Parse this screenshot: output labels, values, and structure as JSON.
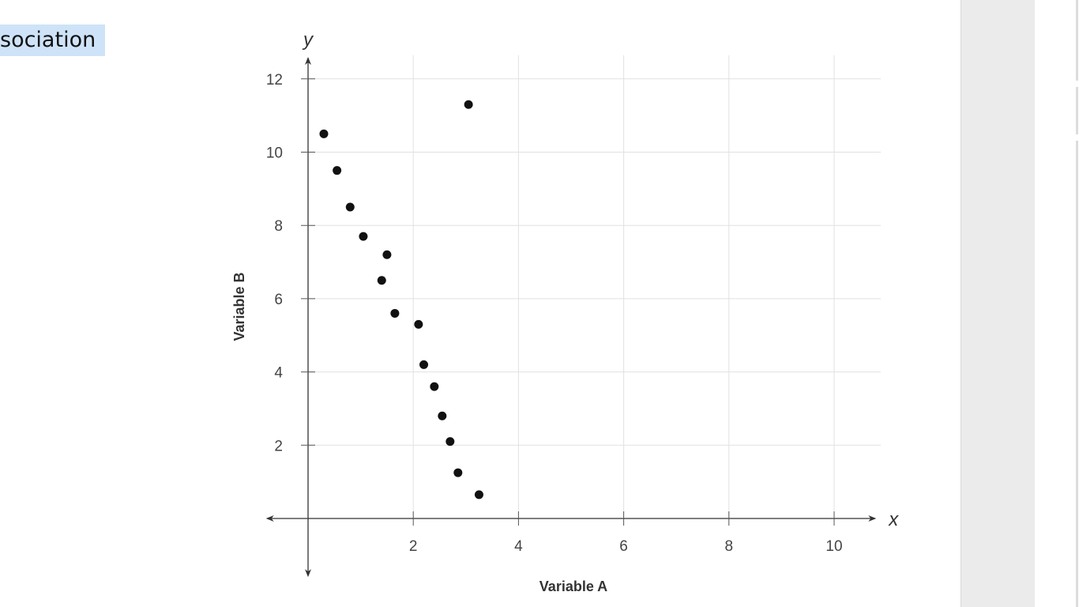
{
  "question_fragment": "sociation",
  "chart_data": {
    "type": "scatter",
    "xlabel": "Variable A",
    "ylabel": "Variable B",
    "x_axis_letter": "x",
    "y_axis_letter": "y",
    "xlim": [
      -0.8,
      10.8
    ],
    "ylim": [
      -1.6,
      12.6
    ],
    "x_ticks": [
      2,
      4,
      6,
      8,
      10
    ],
    "y_ticks": [
      2,
      4,
      6,
      8,
      10,
      12
    ],
    "grid": true,
    "points": [
      {
        "x": 0.3,
        "y": 10.5
      },
      {
        "x": 0.55,
        "y": 9.5
      },
      {
        "x": 0.8,
        "y": 8.5
      },
      {
        "x": 1.05,
        "y": 7.7
      },
      {
        "x": 1.5,
        "y": 7.2
      },
      {
        "x": 1.4,
        "y": 6.5
      },
      {
        "x": 1.65,
        "y": 5.6
      },
      {
        "x": 2.1,
        "y": 5.3
      },
      {
        "x": 2.2,
        "y": 4.2
      },
      {
        "x": 2.4,
        "y": 3.6
      },
      {
        "x": 2.55,
        "y": 2.8
      },
      {
        "x": 2.7,
        "y": 2.1
      },
      {
        "x": 2.85,
        "y": 1.25
      },
      {
        "x": 3.25,
        "y": 0.65
      },
      {
        "x": 3.05,
        "y": 11.3
      }
    ]
  }
}
